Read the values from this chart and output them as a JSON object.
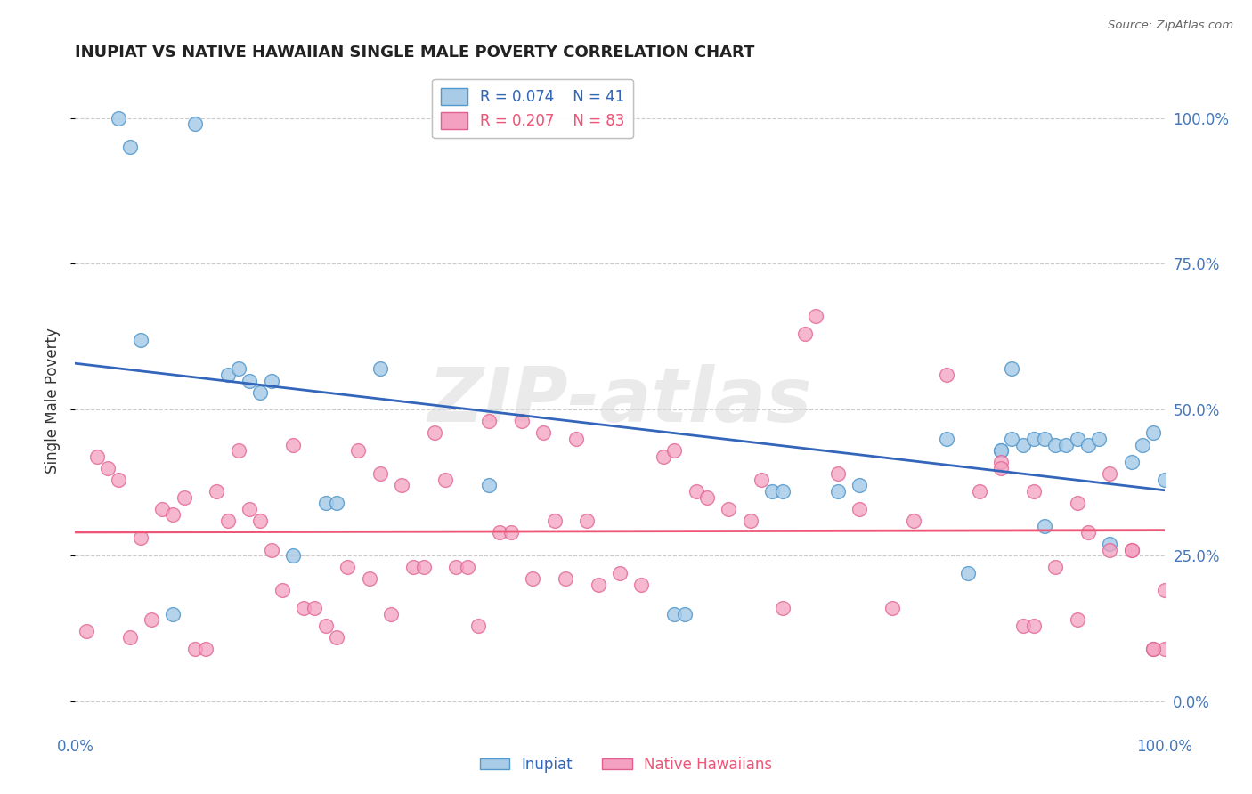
{
  "title": "INUPIAT VS NATIVE HAWAIIAN SINGLE MALE POVERTY CORRELATION CHART",
  "source": "Source: ZipAtlas.com",
  "ylabel": "Single Male Poverty",
  "ytick_labels": [
    "0.0%",
    "25.0%",
    "50.0%",
    "75.0%",
    "100.0%"
  ],
  "ytick_values": [
    0,
    25,
    50,
    75,
    100
  ],
  "xlim": [
    0,
    100
  ],
  "ylim": [
    -5,
    108
  ],
  "legend_r1": "R = 0.074",
  "legend_n1": "N = 41",
  "legend_r2": "R = 0.207",
  "legend_n2": "N = 83",
  "color_inupiat_fill": "#a8cce8",
  "color_inupiat_edge": "#5599cc",
  "color_native_fill": "#f4a0c0",
  "color_native_edge": "#e06090",
  "color_line_inupiat": "#3366bb",
  "color_line_native": "#ee5577",
  "background_color": "#ffffff",
  "grid_color": "#cccccc",
  "inupiat_x": [
    4,
    5,
    6,
    9,
    11,
    14,
    15,
    16,
    17,
    18,
    20,
    23,
    24,
    28,
    38,
    55,
    56,
    64,
    65,
    70,
    72,
    80,
    82,
    85,
    85,
    86,
    87,
    88,
    89,
    90,
    91,
    92,
    93,
    94,
    95,
    97,
    98,
    99,
    100,
    86,
    89
  ],
  "inupiat_y": [
    100,
    95,
    62,
    15,
    99,
    56,
    57,
    55,
    53,
    55,
    25,
    34,
    34,
    57,
    37,
    15,
    15,
    36,
    36,
    36,
    37,
    45,
    22,
    43,
    43,
    57,
    44,
    45,
    45,
    44,
    44,
    45,
    44,
    45,
    27,
    41,
    44,
    46,
    38,
    45,
    30
  ],
  "native_hawaiian_x": [
    1,
    2,
    3,
    4,
    5,
    6,
    7,
    8,
    9,
    10,
    11,
    12,
    13,
    14,
    15,
    16,
    17,
    18,
    19,
    20,
    21,
    22,
    23,
    24,
    25,
    26,
    27,
    28,
    29,
    30,
    31,
    32,
    33,
    34,
    35,
    36,
    37,
    38,
    39,
    40,
    41,
    42,
    43,
    44,
    45,
    46,
    47,
    48,
    50,
    52,
    54,
    55,
    57,
    58,
    60,
    62,
    63,
    65,
    67,
    68,
    70,
    72,
    75,
    77,
    80,
    83,
    85,
    87,
    88,
    90,
    92,
    93,
    95,
    97,
    99,
    100,
    85,
    88,
    92,
    95,
    97,
    99,
    100
  ],
  "native_hawaiian_y": [
    12,
    42,
    40,
    38,
    11,
    28,
    14,
    33,
    32,
    35,
    9,
    9,
    36,
    31,
    43,
    33,
    31,
    26,
    19,
    44,
    16,
    16,
    13,
    11,
    23,
    43,
    21,
    39,
    15,
    37,
    23,
    23,
    46,
    38,
    23,
    23,
    13,
    48,
    29,
    29,
    48,
    21,
    46,
    31,
    21,
    45,
    31,
    20,
    22,
    20,
    42,
    43,
    36,
    35,
    33,
    31,
    38,
    16,
    63,
    66,
    39,
    33,
    16,
    31,
    56,
    36,
    41,
    13,
    36,
    23,
    14,
    29,
    26,
    26,
    9,
    9,
    40,
    13,
    34,
    39,
    26,
    9,
    19
  ]
}
